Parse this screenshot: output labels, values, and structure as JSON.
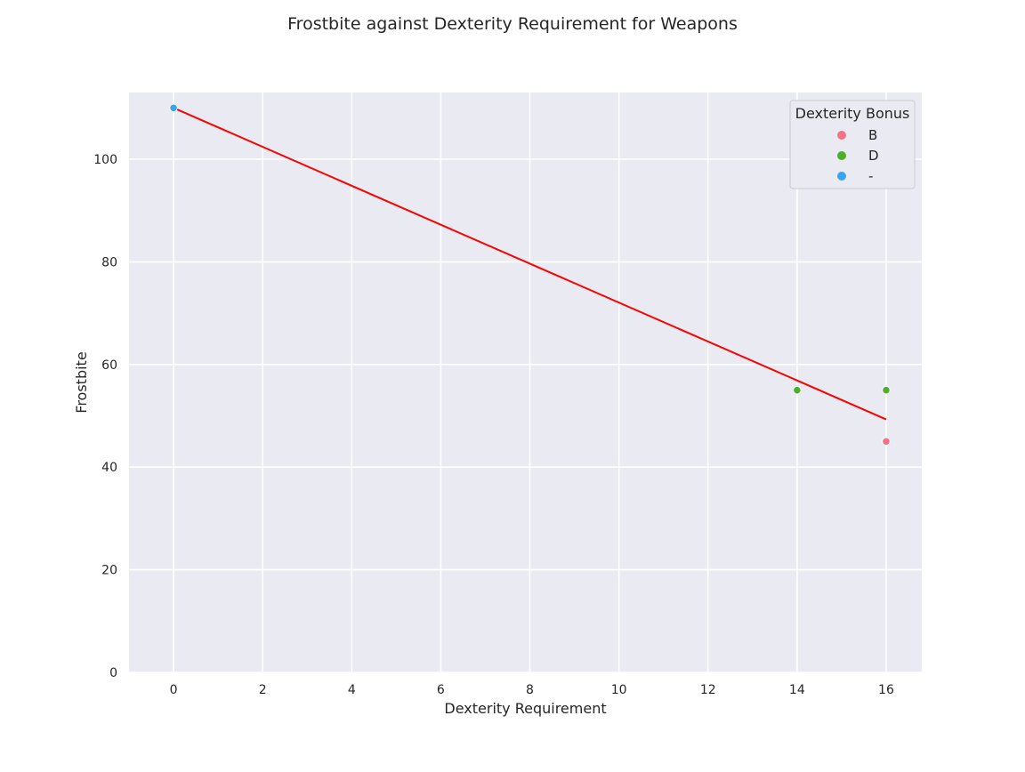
{
  "chart_data": {
    "type": "scatter",
    "title": "Frostbite against Dexterity Requirement for Weapons",
    "xlabel": "Dexterity Requirement",
    "ylabel": "Frostbite",
    "xlim": [
      -1,
      16.8
    ],
    "ylim": [
      0,
      113
    ],
    "xticks": [
      0,
      2,
      4,
      6,
      8,
      10,
      12,
      14,
      16
    ],
    "yticks": [
      0,
      20,
      40,
      60,
      80,
      100
    ],
    "grid": true,
    "background": "#eaeaf2",
    "legend": {
      "title": "Dexterity Bonus",
      "placement": "top-right"
    },
    "series": [
      {
        "name": "B",
        "color": "#f37384",
        "points": [
          {
            "x": 16,
            "y": 45
          }
        ]
      },
      {
        "name": "D",
        "color": "#4daf29",
        "points": [
          {
            "x": 14,
            "y": 55
          },
          {
            "x": 16,
            "y": 55
          }
        ]
      },
      {
        "name": "-",
        "color": "#3ba3ec",
        "points": [
          {
            "x": 0,
            "y": 110
          }
        ]
      }
    ],
    "trendline": {
      "type": "linear",
      "color": "#ff0000",
      "points": [
        {
          "x": 0,
          "y": 110
        },
        {
          "x": 16,
          "y": 49.3
        }
      ]
    }
  }
}
